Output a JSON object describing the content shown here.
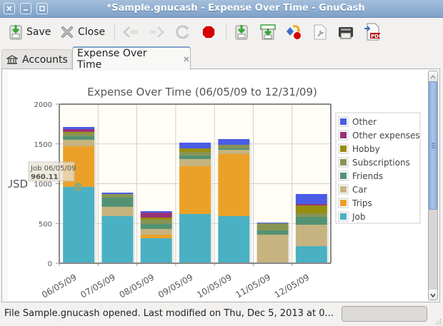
{
  "window": {
    "title": "*Sample.gnucash - Expense Over Time - GnuCash",
    "buttons": [
      "close",
      "minimize",
      "maximize"
    ]
  },
  "toolbar": {
    "save_label": "Save",
    "close_label": "Close",
    "icons": [
      "save-icon",
      "close-icon",
      "back-icon",
      "forward-icon",
      "reload-icon",
      "stop-icon",
      "export-icon",
      "report-options-icon",
      "stylesheet-icon",
      "edit-report-icon",
      "print-icon",
      "pdf-export-icon"
    ]
  },
  "tabs": [
    {
      "label": "Accounts",
      "icon": "bank-icon",
      "active": false
    },
    {
      "label": "Expense Over Time",
      "active": true,
      "closable": true
    }
  ],
  "tooltip": {
    "line1": "Job 06/05/09",
    "line2": "960.11"
  },
  "status": {
    "text": "File Sample.gnucash opened. Last modified on Thu, Dec  5, 2013 at 0..."
  },
  "colors": {
    "Other": "#4a5ce6",
    "Other expenses": "#973178",
    "Hobby": "#968d0e",
    "Subscriptions": "#879454",
    "Friends": "#529273",
    "Car": "#c6b380",
    "Trips": "#eba128",
    "Job": "#49b1c3"
  },
  "chart_data": {
    "type": "bar",
    "stacked": true,
    "title": "Expense Over Time (06/05/09 to 12/31/09)",
    "xlabel": "",
    "ylabel": "USD",
    "ylim": [
      0,
      2000
    ],
    "yticks": [
      0,
      500,
      1000,
      1500,
      2000
    ],
    "grid": true,
    "legend_position": "right",
    "categories": [
      "06/05/09",
      "07/05/09",
      "08/05/09",
      "09/05/09",
      "10/05/09",
      "11/05/09",
      "12/05/09"
    ],
    "series": [
      {
        "name": "Job",
        "values": [
          960.11,
          592,
          314,
          619,
          592,
          0,
          215
        ]
      },
      {
        "name": "Trips",
        "values": [
          511,
          0,
          45,
          601,
          780,
          0,
          0
        ]
      },
      {
        "name": "Car",
        "values": [
          81,
          117,
          72,
          90,
          54,
          359,
          269
        ]
      },
      {
        "name": "Friends",
        "values": [
          45,
          116,
          62,
          45,
          18,
          54,
          99
        ]
      },
      {
        "name": "Subscriptions",
        "values": [
          36,
          45,
          54,
          44,
          45,
          89,
          45
        ]
      },
      {
        "name": "Hobby",
        "values": [
          18,
          0,
          27,
          45,
          0,
          0,
          99
        ]
      },
      {
        "name": "Other expenses",
        "values": [
          35,
          0,
          63,
          0,
          0,
          0,
          18
        ]
      },
      {
        "name": "Other",
        "values": [
          27,
          18,
          18,
          72,
          72,
          9,
          125
        ]
      }
    ],
    "legend": [
      "Other",
      "Other expenses",
      "Hobby",
      "Subscriptions",
      "Friends",
      "Car",
      "Trips",
      "Job"
    ]
  }
}
